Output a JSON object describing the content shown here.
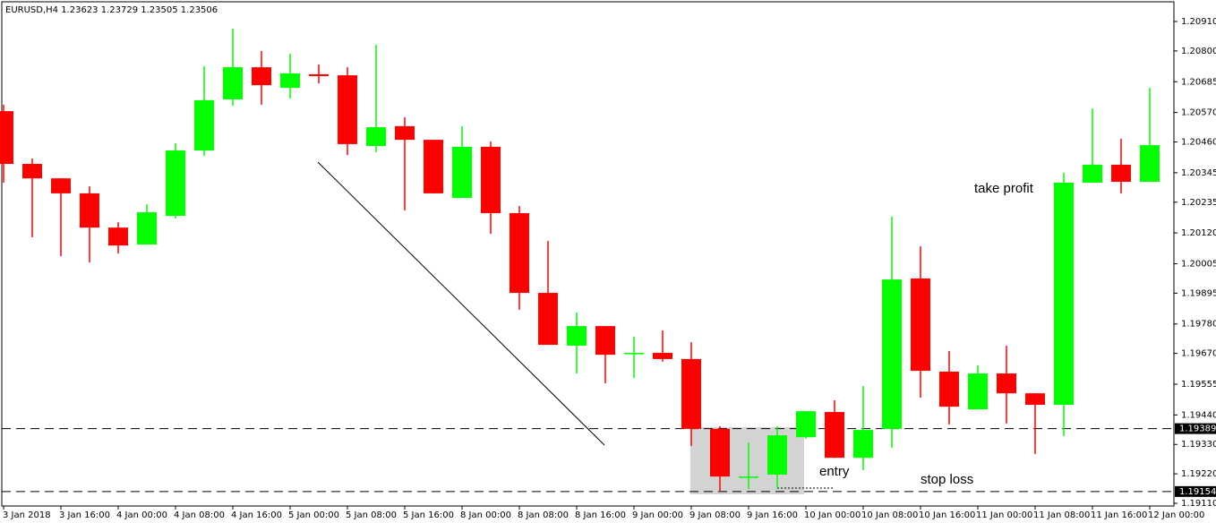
{
  "chart_data": {
    "type": "candlestick",
    "title": "EURUSD,H4  1.23623 1.23729 1.23505 1.23506",
    "categories": [
      "3 Jan 2018",
      null,
      "3 Jan 16:00",
      null,
      "4 Jan 00:00",
      null,
      "4 Jan 08:00",
      null,
      "4 Jan 16:00",
      null,
      "5 Jan 00:00",
      null,
      "5 Jan 08:00",
      null,
      "5 Jan 16:00",
      null,
      "8 Jan 00:00",
      null,
      "8 Jan 08:00",
      null,
      "8 Jan 16:00",
      null,
      "9 Jan 00:00",
      null,
      "9 Jan 08:00",
      null,
      "9 Jan 16:00",
      null,
      "10 Jan 00:00",
      null,
      "10 Jan 08:00",
      null,
      "10 Jan 16:00",
      null,
      "11 Jan 00:00",
      null,
      "11 Jan 08:00",
      null,
      "11 Jan 16:00",
      null,
      "12 Jan 00:00"
    ],
    "open": [
      1.20575,
      1.20378,
      1.20324,
      1.20268,
      1.2014,
      1.20077,
      1.20184,
      1.20428,
      1.20619,
      1.20739,
      1.20662,
      1.20713,
      1.20709,
      1.20445,
      1.20519,
      1.20468,
      1.20251,
      1.20442,
      1.20194,
      1.19896,
      1.19699,
      1.19772,
      1.19672,
      1.19672,
      1.19649,
      1.19388,
      1.1921,
      1.19217,
      1.19357,
      1.19451,
      1.1928,
      1.19388,
      1.1995,
      1.19602,
      1.19461,
      1.19595,
      1.19521,
      1.19478,
      1.20308,
      1.20375,
      1.20311
    ],
    "high": [
      1.20599,
      1.20398,
      1.20324,
      1.20294,
      1.2016,
      1.20227,
      1.20455,
      1.20743,
      1.20883,
      1.208,
      1.2079,
      1.20749,
      1.20739,
      1.20823,
      1.20552,
      1.20468,
      1.20519,
      1.20462,
      1.20221,
      1.2009,
      1.19823,
      1.19772,
      1.19732,
      1.19756,
      1.19712,
      1.19398,
      1.19337,
      1.19398,
      1.19454,
      1.19495,
      1.19548,
      1.20181,
      1.2007,
      1.19679,
      1.19625,
      1.19699,
      1.19521,
      1.20345,
      1.20585,
      1.20472,
      1.20662
    ],
    "low": [
      1.20308,
      1.20104,
      1.20033,
      1.2001,
      1.20043,
      1.20077,
      1.20174,
      1.20408,
      1.20595,
      1.20599,
      1.20622,
      1.20679,
      1.20411,
      1.20421,
      1.20204,
      1.20268,
      1.20251,
      1.20117,
      1.19833,
      1.19702,
      1.19595,
      1.19558,
      1.19578,
      1.19639,
      1.19324,
      1.19157,
      1.19163,
      1.19167,
      1.19351,
      1.1928,
      1.19234,
      1.19317,
      1.19505,
      1.19404,
      1.19461,
      1.19408,
      1.19294,
      1.19361,
      1.20308,
      1.20268,
      1.20311
    ],
    "close": [
      1.20378,
      1.20324,
      1.20268,
      1.2014,
      1.20073,
      1.20197,
      1.20428,
      1.20616,
      1.20739,
      1.20672,
      1.20716,
      1.20706,
      1.20452,
      1.20515,
      1.20468,
      1.20268,
      1.20442,
      1.20194,
      1.19896,
      1.19702,
      1.19772,
      1.19665,
      1.19672,
      1.19649,
      1.19388,
      1.1921,
      1.1921,
      1.19364,
      1.19454,
      1.1928,
      1.19384,
      1.19946,
      1.19605,
      1.19471,
      1.19595,
      1.19521,
      1.19478,
      1.20308,
      1.20375,
      1.20311,
      1.20448
    ],
    "up_color": "#00ff00",
    "down_color": "#ff0000",
    "ylim": [
      1.1911,
      1.2091
    ],
    "yticks": [
      {
        "value": 1.2091,
        "label": "1.20910"
      },
      {
        "value": 1.208,
        "label": "1.20800"
      },
      1.20685,
      {
        "value": 1.2057,
        "label": "1.20570"
      },
      {
        "value": 1.2046,
        "label": "1.20460"
      },
      1.20345,
      1.20235,
      {
        "value": 1.2012,
        "label": "1.20120"
      },
      1.20005,
      1.19895,
      {
        "value": 1.1978,
        "label": "1.19780"
      },
      {
        "value": 1.1967,
        "label": "1.19670"
      },
      1.19555,
      {
        "value": 1.1944,
        "label": "1.19440"
      },
      {
        "value": 1.1933,
        "label": "1.19330"
      },
      {
        "value": 1.1922,
        "label": "1.19220"
      },
      {
        "value": 1.1911,
        "label": "1.19110"
      }
    ],
    "levels": [
      1.19389,
      1.19154
    ],
    "annotations": [
      "take profit",
      "entry",
      "stop loss"
    ]
  }
}
